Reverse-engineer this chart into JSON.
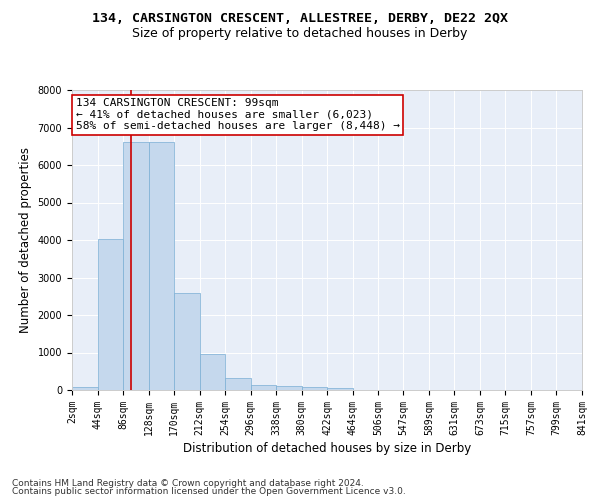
{
  "title": "134, CARSINGTON CRESCENT, ALLESTREE, DERBY, DE22 2QX",
  "subtitle": "Size of property relative to detached houses in Derby",
  "xlabel": "Distribution of detached houses by size in Derby",
  "ylabel": "Number of detached properties",
  "bin_edges": [
    2,
    44,
    86,
    128,
    170,
    212,
    254,
    296,
    338,
    380,
    422,
    464,
    506,
    547,
    589,
    631,
    673,
    715,
    757,
    799,
    841
  ],
  "bar_heights": [
    80,
    4020,
    6620,
    6620,
    2600,
    960,
    320,
    130,
    110,
    70,
    55,
    0,
    0,
    0,
    0,
    0,
    0,
    0,
    0,
    0
  ],
  "bar_color": "#c5d8ed",
  "bar_edge_color": "#7aaed4",
  "property_size": 99,
  "vline_color": "#cc0000",
  "annotation_text": "134 CARSINGTON CRESCENT: 99sqm\n← 41% of detached houses are smaller (6,023)\n58% of semi-detached houses are larger (8,448) →",
  "annotation_box_color": "#ffffff",
  "annotation_box_edge_color": "#cc0000",
  "ylim": [
    0,
    8000
  ],
  "yticks": [
    0,
    1000,
    2000,
    3000,
    4000,
    5000,
    6000,
    7000,
    8000
  ],
  "background_color": "#e8eef8",
  "footer_line1": "Contains HM Land Registry data © Crown copyright and database right 2024.",
  "footer_line2": "Contains public sector information licensed under the Open Government Licence v3.0.",
  "title_fontsize": 9.5,
  "subtitle_fontsize": 9,
  "axis_label_fontsize": 8.5,
  "tick_fontsize": 7,
  "annotation_fontsize": 8,
  "footer_fontsize": 6.5
}
